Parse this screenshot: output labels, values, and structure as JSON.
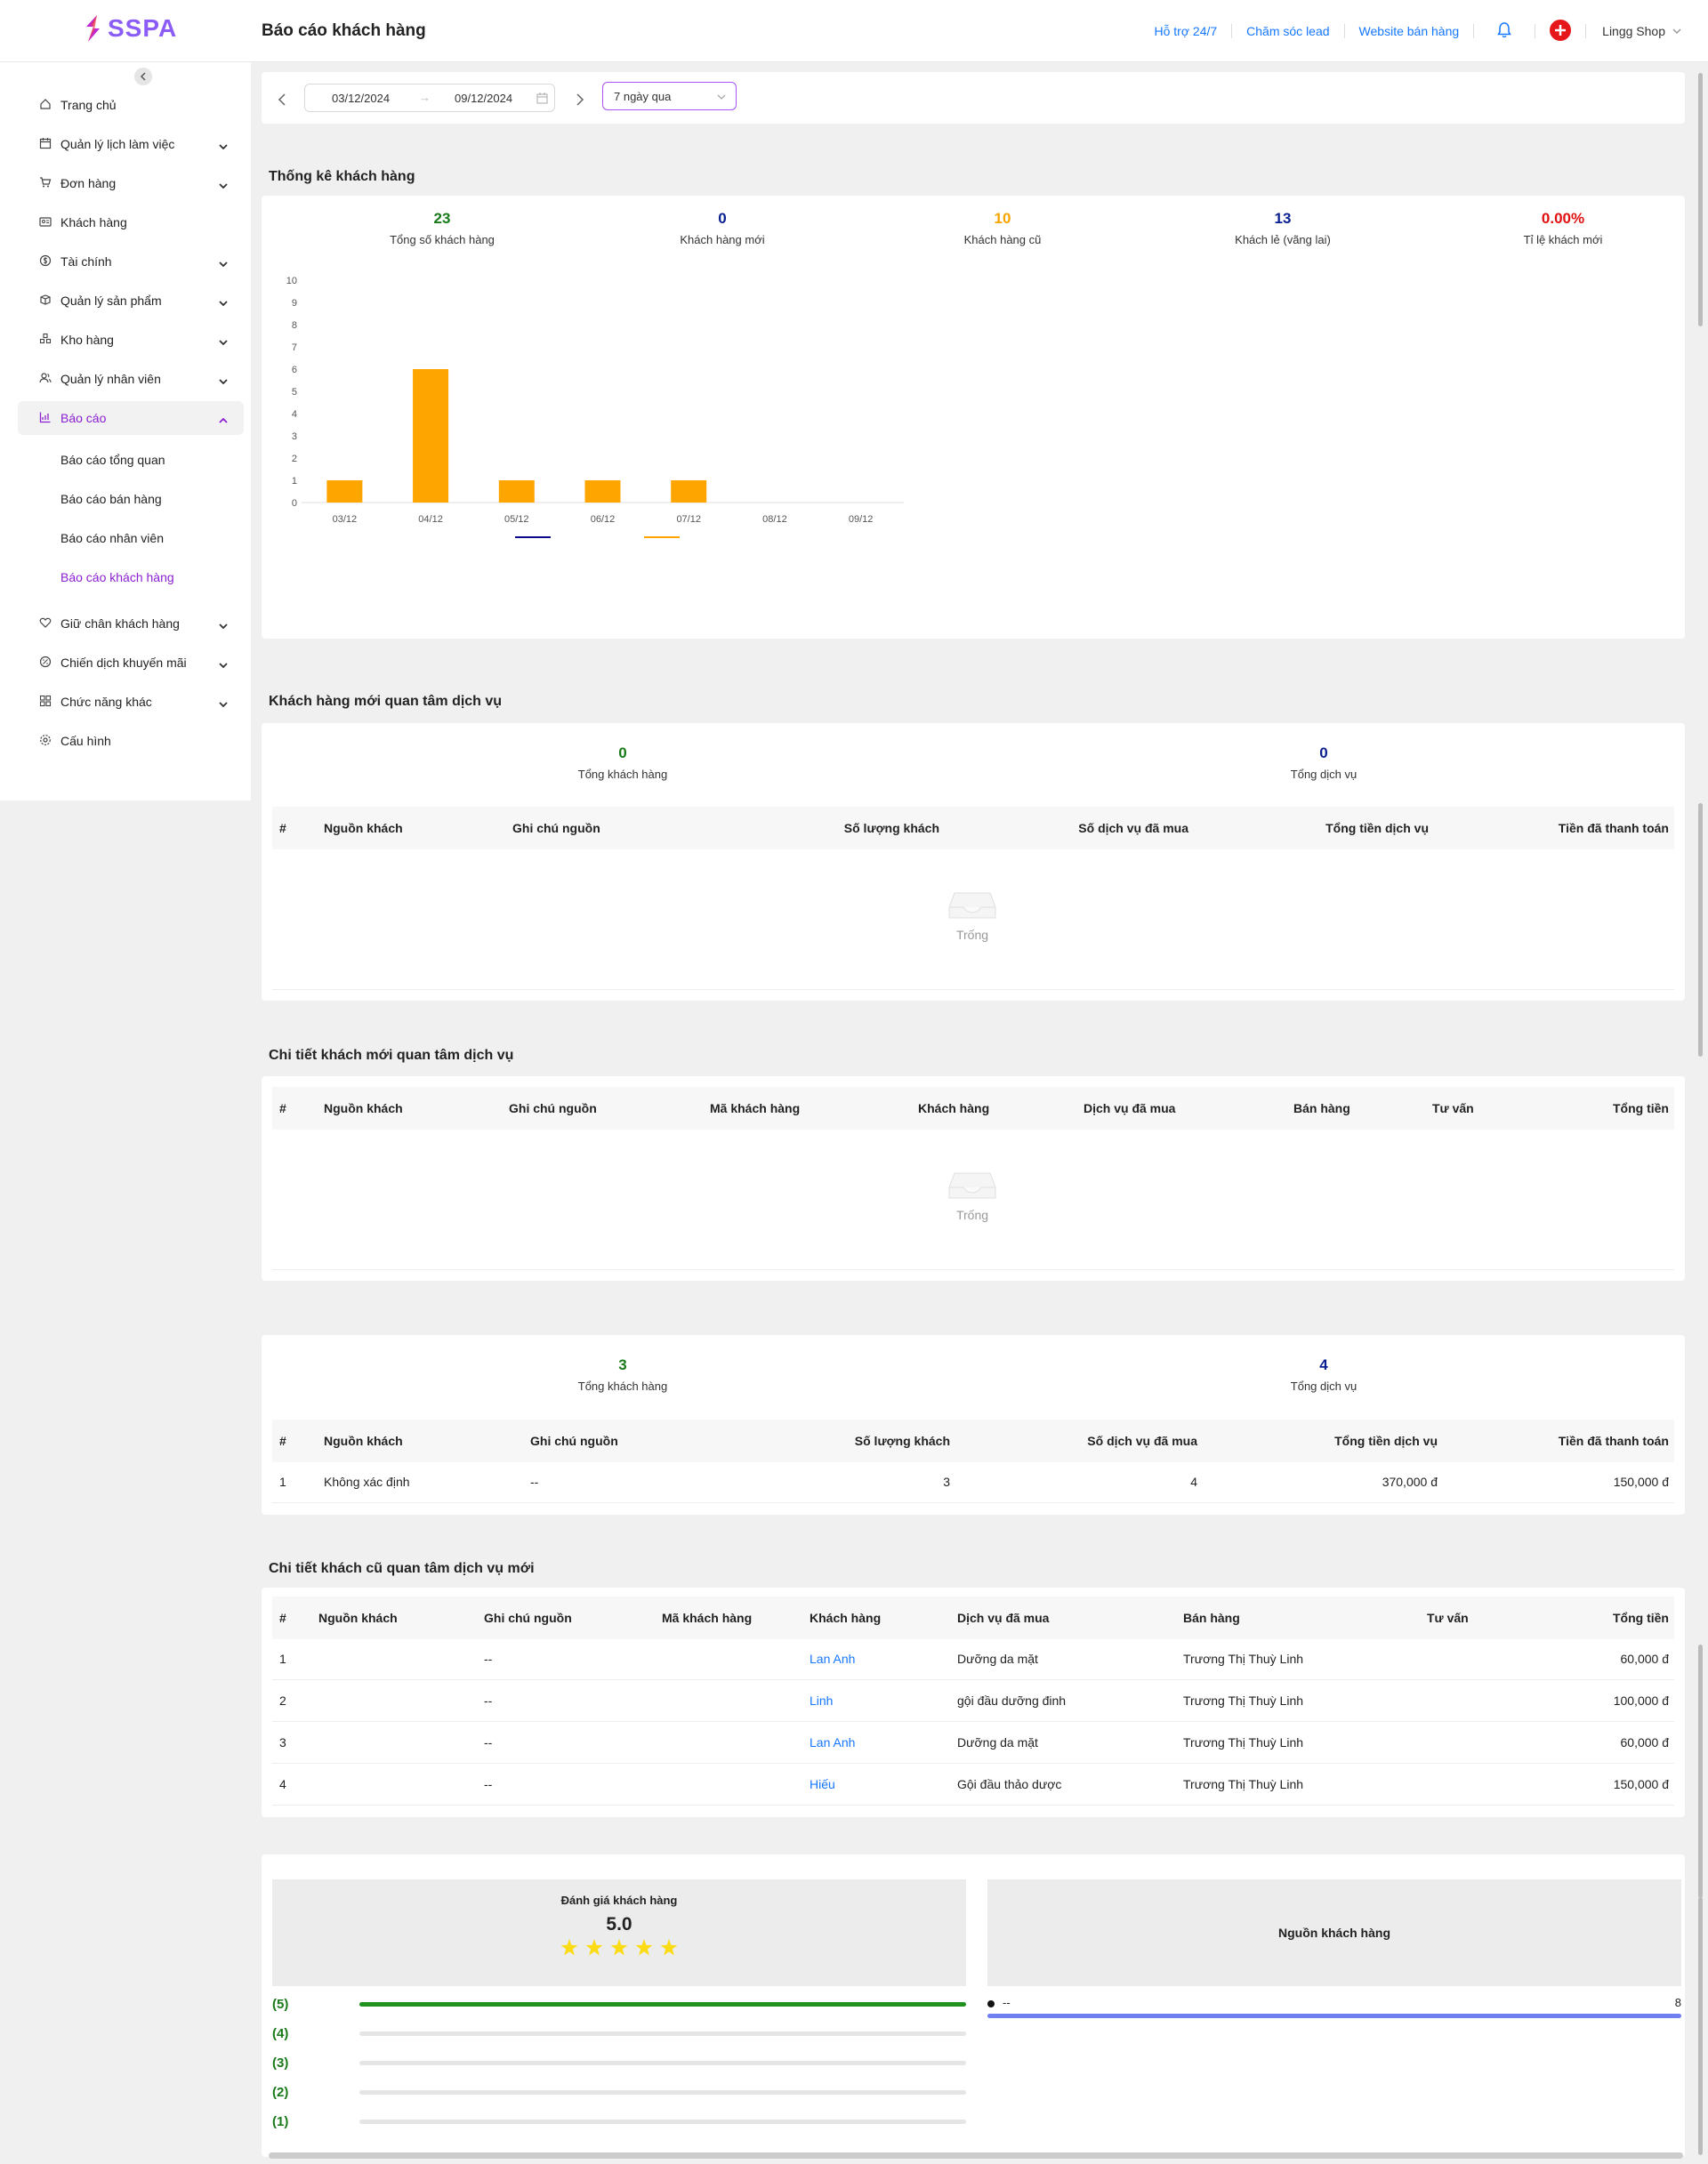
{
  "app": {
    "brand": "SSPA",
    "page_title": "Báo cáo khách hàng"
  },
  "topbar": {
    "links": [
      "Hỗ trợ 24/7",
      "Chăm sóc lead",
      "Website bán hàng"
    ],
    "shop_name": "Lingg Shop"
  },
  "sidebar": {
    "items": [
      {
        "label": "Trang chủ",
        "icon": "home-icon",
        "expandable": false
      },
      {
        "label": "Quản lý lịch làm việc",
        "icon": "calendar-icon",
        "expandable": true
      },
      {
        "label": "Đơn hàng",
        "icon": "cart-icon",
        "expandable": true
      },
      {
        "label": "Khách hàng",
        "icon": "id-card-icon",
        "expandable": false
      },
      {
        "label": "Tài chính",
        "icon": "dollar-icon",
        "expandable": true
      },
      {
        "label": "Quản lý sản phẩm",
        "icon": "box-icon",
        "expandable": true
      },
      {
        "label": "Kho hàng",
        "icon": "warehouse-icon",
        "expandable": true
      },
      {
        "label": "Quản lý nhân viên",
        "icon": "users-icon",
        "expandable": true
      },
      {
        "label": "Báo cáo",
        "icon": "chart-icon",
        "expandable": true,
        "active": true
      },
      {
        "label": "Giữ chân khách hàng",
        "icon": "heart-icon",
        "expandable": true
      },
      {
        "label": "Chiến dịch khuyến mãi",
        "icon": "discount-icon",
        "expandable": true
      },
      {
        "label": "Chức năng khác",
        "icon": "apps-icon",
        "expandable": true
      },
      {
        "label": "Cấu hình",
        "icon": "settings-icon",
        "expandable": false
      }
    ],
    "sub_items": [
      "Báo cáo tổng quan",
      "Báo cáo bán hàng",
      "Báo cáo nhân viên",
      "Báo cáo khách hàng"
    ]
  },
  "filter": {
    "date_from": "03/12/2024",
    "date_to": "09/12/2024",
    "range_separator": "→",
    "preset": "7 ngày qua"
  },
  "stats_section": {
    "title": "Thống kê khách hàng",
    "stats": [
      {
        "value": "23",
        "label": "Tổng số khách hàng",
        "color": "#1a7a1a"
      },
      {
        "value": "0",
        "label": "Khách hàng mới",
        "color": "#0a1f8f"
      },
      {
        "value": "10",
        "label": "Khách hàng cũ",
        "color": "#f7a400"
      },
      {
        "value": "13",
        "label": "Khách lẻ (vãng lai)",
        "color": "#0a1f8f"
      },
      {
        "value": "0.00%",
        "label": "Tỉ lệ khách mới",
        "color": "#e01010"
      }
    ]
  },
  "chart_data": {
    "type": "bar",
    "categories": [
      "03/12",
      "04/12",
      "05/12",
      "06/12",
      "07/12",
      "08/12",
      "09/12"
    ],
    "series": [
      {
        "name": "Khách hàng mới",
        "values": [
          0,
          0,
          0,
          0,
          0,
          0,
          0
        ],
        "color": "#0a0a8a"
      },
      {
        "name": "Khách hàng cũ",
        "values": [
          1,
          6,
          1,
          1,
          1,
          0,
          0
        ],
        "color": "#ffa500"
      }
    ],
    "ylim": [
      0,
      10
    ],
    "yticks": [
      "0",
      "1",
      "2",
      "3",
      "4",
      "5",
      "6",
      "7",
      "8",
      "9",
      "10"
    ],
    "legend": "bottom"
  },
  "new_interest": {
    "title": "Khách hàng mới quan tâm dịch vụ",
    "total_customers": "0",
    "total_customers_label": "Tổng khách hàng",
    "total_services": "0",
    "total_services_label": "Tổng dịch vụ",
    "headers": [
      "#",
      "Nguồn khách",
      "Ghi chú nguồn",
      "Số lượng khách",
      "Số dịch vụ đã mua",
      "Tổng tiền dịch vụ",
      "Tiền đã thanh toán"
    ],
    "empty_text": "Trống"
  },
  "new_detail": {
    "title": "Chi tiết khách mới quan tâm dịch vụ",
    "headers": [
      "#",
      "Nguồn khách",
      "Ghi chú nguồn",
      "Mã khách hàng",
      "Khách hàng",
      "Dịch vụ đã mua",
      "Bán hàng",
      "Tư vấn",
      "Tổng tiền"
    ],
    "empty_text": "Trống"
  },
  "old_summary": {
    "total_customers": "3",
    "total_customers_label": "Tổng khách hàng",
    "total_services": "4",
    "total_services_label": "Tổng dịch vụ",
    "headers": [
      "#",
      "Nguồn khách",
      "Ghi chú nguồn",
      "Số lượng khách",
      "Số dịch vụ đã mua",
      "Tổng tiền dịch vụ",
      "Tiền đã thanh toán"
    ],
    "rows": [
      [
        "1",
        "Không xác định",
        "--",
        "3",
        "4",
        "370,000 đ",
        "150,000 đ"
      ]
    ]
  },
  "old_detail": {
    "title": "Chi tiết khách cũ quan tâm dịch vụ mới",
    "headers": [
      "#",
      "Nguồn khách",
      "Ghi chú nguồn",
      "Mã khách hàng",
      "Khách hàng",
      "Dịch vụ đã mua",
      "Bán hàng",
      "Tư vấn",
      "Tổng tiền"
    ],
    "rows": [
      [
        "1",
        "",
        "--",
        "",
        "Lan Anh",
        "Dưỡng da mặt",
        "Trương Thị Thuỳ Linh",
        "",
        "60,000 đ"
      ],
      [
        "2",
        "",
        "--",
        "",
        "Linh",
        "gội đầu dưỡng đinh",
        "Trương Thị Thuỳ Linh",
        "",
        "100,000 đ"
      ],
      [
        "3",
        "",
        "--",
        "",
        "Lan Anh",
        "Dưỡng da mặt",
        "Trương Thị Thuỳ Linh",
        "",
        "60,000 đ"
      ],
      [
        "4",
        "",
        "--",
        "",
        "Hiếu",
        "Gội đầu thảo dược",
        "Trương Thị Thuỳ Linh",
        "",
        "150,000 đ"
      ]
    ]
  },
  "rating": {
    "title": "Đánh giá khách hàng",
    "score": "5.0",
    "stars": 5,
    "bars": [
      {
        "label": "(5)",
        "fraction": 1
      },
      {
        "label": "(4)",
        "fraction": 0
      },
      {
        "label": "(3)",
        "fraction": 0
      },
      {
        "label": "(2)",
        "fraction": 0
      },
      {
        "label": "(1)",
        "fraction": 0
      }
    ]
  },
  "sources": {
    "title": "Nguồn khách hàng",
    "items": [
      {
        "label": "--",
        "value": "8",
        "fraction": 1
      }
    ]
  }
}
